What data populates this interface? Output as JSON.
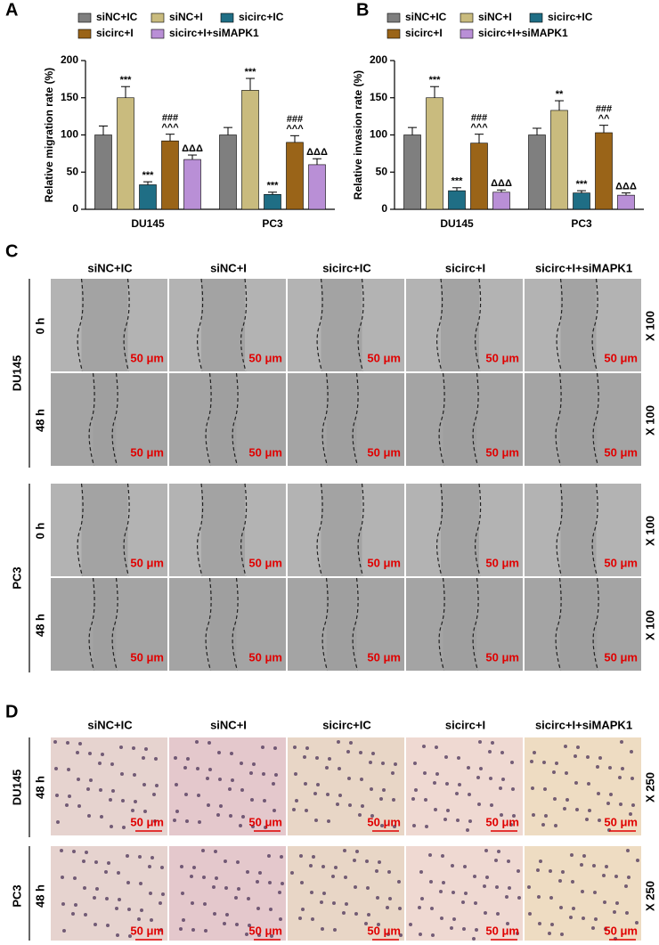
{
  "chart_data": [
    {
      "type": "bar",
      "panel_label": "A",
      "y_label": "Relative migration rate (%)",
      "categories": [
        "DU145",
        "PC3"
      ],
      "ylim": [
        0,
        200
      ],
      "yticks": [
        0,
        50,
        100,
        150,
        200
      ],
      "series": [
        {
          "name": "siNC+IC",
          "color": "#7f7f7f",
          "values": [
            100,
            100
          ],
          "errors": [
            12,
            10
          ]
        },
        {
          "name": "siNC+I",
          "color": "#c9bb7e",
          "values": [
            150,
            160
          ],
          "errors": [
            15,
            16
          ],
          "annotations": [
            [
              "***"
            ],
            [
              "***"
            ]
          ]
        },
        {
          "name": "sicirc+IC",
          "color": "#1f6e85",
          "values": [
            33,
            20
          ],
          "errors": [
            4,
            3
          ],
          "annotations": [
            [
              "***"
            ],
            [
              "***"
            ]
          ]
        },
        {
          "name": "sicirc+I",
          "color": "#9a6418",
          "values": [
            92,
            90
          ],
          "errors": [
            9,
            9
          ],
          "annotations": [
            [
              "###",
              "^^^"
            ],
            [
              "###",
              "^^^"
            ]
          ]
        },
        {
          "name": "sicirc+I+siMAPK1",
          "color": "#b98fd6",
          "values": [
            67,
            60
          ],
          "errors": [
            6,
            8
          ],
          "annotations": [
            [
              "ΔΔΔ"
            ],
            [
              "ΔΔΔ"
            ]
          ]
        }
      ]
    },
    {
      "type": "bar",
      "panel_label": "B",
      "y_label": "Relative invasion rate (%)",
      "categories": [
        "DU145",
        "PC3"
      ],
      "ylim": [
        0,
        200
      ],
      "yticks": [
        0,
        50,
        100,
        150,
        200
      ],
      "series": [
        {
          "name": "siNC+IC",
          "color": "#7f7f7f",
          "values": [
            100,
            100
          ],
          "errors": [
            10,
            9
          ]
        },
        {
          "name": "siNC+I",
          "color": "#c9bb7e",
          "values": [
            150,
            133
          ],
          "errors": [
            15,
            13
          ],
          "annotations": [
            [
              "***"
            ],
            [
              "**"
            ]
          ]
        },
        {
          "name": "sicirc+IC",
          "color": "#1f6e85",
          "values": [
            25,
            22
          ],
          "errors": [
            4,
            3
          ],
          "annotations": [
            [
              "***"
            ],
            [
              "***"
            ]
          ]
        },
        {
          "name": "sicirc+I",
          "color": "#9a6418",
          "values": [
            89,
            103
          ],
          "errors": [
            12,
            10
          ],
          "annotations": [
            [
              "###",
              "^^^"
            ],
            [
              "###",
              "^^"
            ]
          ]
        },
        {
          "name": "sicirc+I+siMAPK1",
          "color": "#b98fd6",
          "values": [
            23,
            19
          ],
          "errors": [
            3,
            3
          ],
          "annotations": [
            [
              "ΔΔΔ"
            ],
            [
              "ΔΔΔ"
            ]
          ]
        }
      ]
    }
  ],
  "panel_c": {
    "label": "C",
    "columns": [
      "siNC+IC",
      "siNC+I",
      "sicirc+IC",
      "sicirc+I",
      "sicirc+I+siMAPK1"
    ],
    "groups": [
      {
        "name": "DU145",
        "rows": [
          "0 h",
          "48 h"
        ]
      },
      {
        "name": "PC3",
        "rows": [
          "0 h",
          "48 h"
        ]
      }
    ],
    "scale_bar": "50 μm",
    "magnification": "X 100"
  },
  "panel_d": {
    "label": "D",
    "columns": [
      "siNC+IC",
      "siNC+I",
      "sicirc+IC",
      "sicirc+I",
      "sicirc+I+siMAPK1"
    ],
    "groups": [
      {
        "name": "DU145",
        "rows": [
          "48 h"
        ]
      },
      {
        "name": "PC3",
        "rows": [
          "48 h"
        ]
      }
    ],
    "scale_bar": "50 μm",
    "magnification": "X 250"
  }
}
